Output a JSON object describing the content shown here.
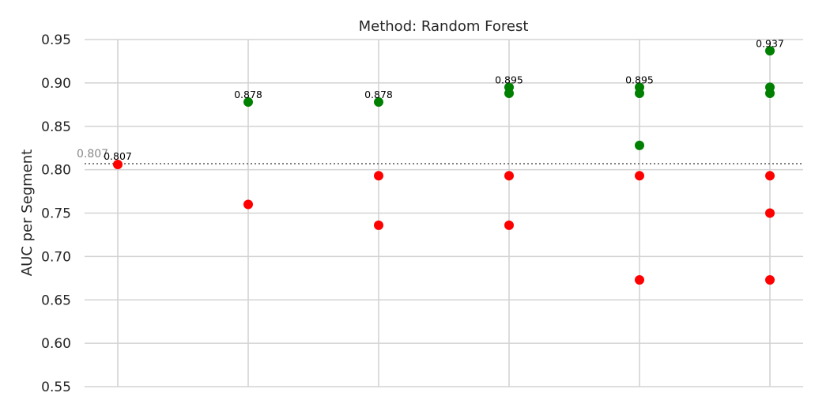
{
  "chart_data": {
    "type": "scatter",
    "title": "Method: Random Forest",
    "xlabel": "",
    "ylabel": "AUC per Segment",
    "ylim": [
      0.55,
      0.95
    ],
    "yticks": [
      "0.55",
      "0.60",
      "0.65",
      "0.70",
      "0.75",
      "0.80",
      "0.85",
      "0.90",
      "0.95"
    ],
    "x_count": 6,
    "grid": true,
    "reference_line": {
      "value": 0.807,
      "label": "0.807",
      "style": "dotted",
      "color": "#808080"
    },
    "colors": {
      "above": "#008000",
      "below": "#ff0000"
    },
    "series": [
      {
        "color": "#ff0000",
        "points": [
          [
            0,
            0.806
          ],
          [
            1,
            0.76
          ],
          [
            2,
            0.793
          ],
          [
            2,
            0.736
          ],
          [
            3,
            0.793
          ],
          [
            3,
            0.736
          ],
          [
            4,
            0.793
          ],
          [
            4,
            0.673
          ],
          [
            5,
            0.793
          ],
          [
            5,
            0.75
          ],
          [
            5,
            0.673
          ]
        ]
      },
      {
        "color": "#008000",
        "points": [
          [
            1,
            0.878
          ],
          [
            2,
            0.878
          ],
          [
            3,
            0.895
          ],
          [
            3,
            0.888
          ],
          [
            4,
            0.895
          ],
          [
            4,
            0.888
          ],
          [
            4,
            0.828
          ],
          [
            5,
            0.937
          ],
          [
            5,
            0.895
          ],
          [
            5,
            0.888
          ]
        ]
      }
    ],
    "annotations": [
      {
        "x": 0,
        "y": 0.807,
        "text": "0.807"
      },
      {
        "x": 1,
        "y": 0.878,
        "text": "0.878"
      },
      {
        "x": 2,
        "y": 0.878,
        "text": "0.878"
      },
      {
        "x": 3,
        "y": 0.895,
        "text": "0.895"
      },
      {
        "x": 4,
        "y": 0.895,
        "text": "0.895"
      },
      {
        "x": 5,
        "y": 0.937,
        "text": "0.937"
      }
    ]
  }
}
